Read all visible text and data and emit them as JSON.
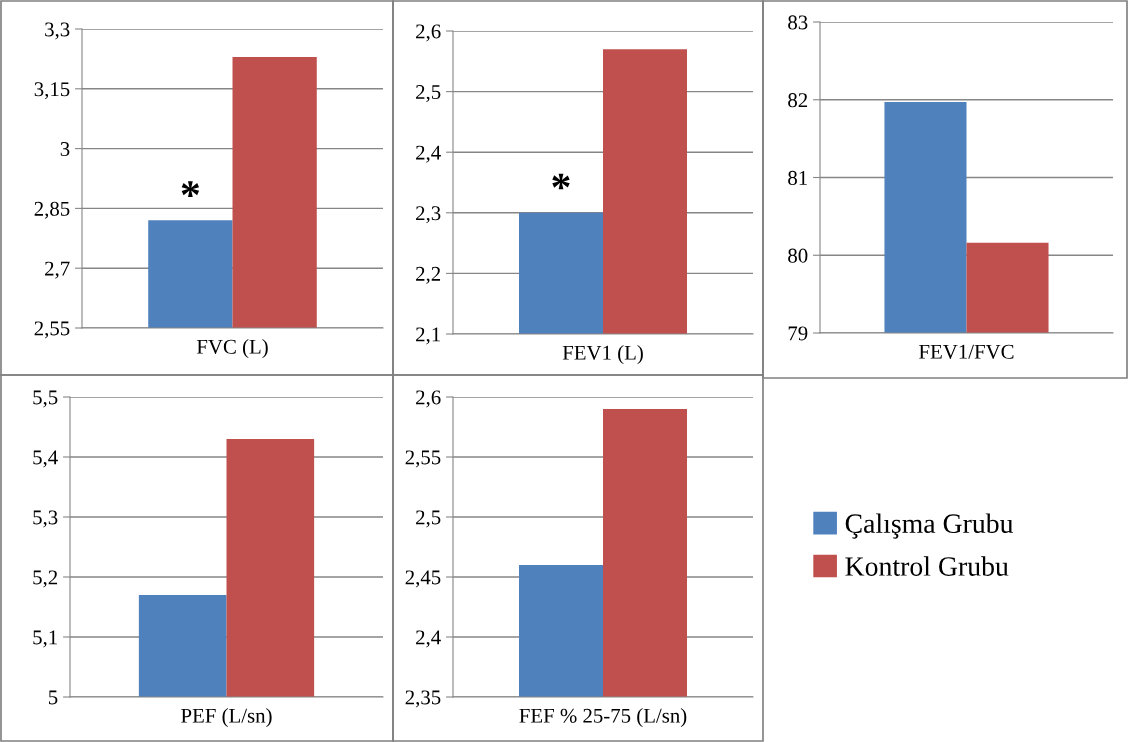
{
  "chart_data": [
    {
      "type": "bar",
      "categories": [
        "FVC (L)"
      ],
      "series": [
        {
          "color": "#4f81bd",
          "values": [
            2.82
          ]
        },
        {
          "color": "#c0504d",
          "values": [
            3.23
          ]
        }
      ],
      "ylim": [
        2.55,
        3.3
      ],
      "yticks": [
        {
          "value": 2.55,
          "label": "2,55"
        },
        {
          "value": 2.7,
          "label": "2,7"
        },
        {
          "value": 2.85,
          "label": "2,85"
        },
        3,
        {
          "value": 3.15,
          "label": "3,15"
        },
        {
          "value": 3.3,
          "label": "3,3"
        }
      ],
      "grid": "y",
      "annotations": [
        {
          "text": "*",
          "x": "FVC (L)",
          "y": 2.82
        }
      ]
    },
    {
      "type": "bar",
      "categories": [
        "FEV1 (L)"
      ],
      "series": [
        {
          "color": "#4f81bd",
          "values": [
            2.3
          ]
        },
        {
          "color": "#c0504d",
          "values": [
            2.57
          ]
        }
      ],
      "ylim": [
        2.1,
        2.6
      ],
      "yticks": [
        {
          "value": 2.1,
          "label": "2,1"
        },
        {
          "value": 2.2,
          "label": "2,2"
        },
        {
          "value": 2.3,
          "label": "2,3"
        },
        {
          "value": 2.4,
          "label": "2,4"
        },
        {
          "value": 2.5,
          "label": "2,5"
        },
        {
          "value": 2.6,
          "label": "2,6"
        }
      ],
      "grid": "y",
      "annotations": [
        {
          "text": "*",
          "x": "FEV1 (L)",
          "y": 2.3
        }
      ]
    },
    {
      "type": "bar",
      "categories": [
        "FEV1/FVC"
      ],
      "series": [
        {
          "color": "#4f81bd",
          "values": [
            81.97
          ]
        },
        {
          "color": "#c0504d",
          "values": [
            80.16
          ]
        }
      ],
      "ylim": [
        79,
        83
      ],
      "yticks": [
        79,
        80,
        81,
        82,
        83
      ],
      "grid": "y"
    },
    {
      "type": "bar",
      "categories": [
        "PEF (L/sn)"
      ],
      "series": [
        {
          "color": "#4f81bd",
          "values": [
            5.17
          ]
        },
        {
          "color": "#c0504d",
          "values": [
            5.43
          ]
        }
      ],
      "ylim": [
        5,
        5.5
      ],
      "yticks": [
        5,
        {
          "value": 5.1,
          "label": "5,1"
        },
        {
          "value": 5.2,
          "label": "5,2"
        },
        {
          "value": 5.3,
          "label": "5,3"
        },
        {
          "value": 5.4,
          "label": "5,4"
        },
        {
          "value": 5.5,
          "label": "5,5"
        }
      ],
      "grid": "y"
    },
    {
      "type": "bar",
      "categories": [
        "FEF % 25-75 (L/sn)"
      ],
      "series": [
        {
          "name": "Çalışma Grubu",
          "color": "#4f81bd",
          "values": [
            2.46
          ]
        },
        {
          "name": "Kontrol Grubu",
          "color": "#c0504d",
          "values": [
            2.59
          ]
        }
      ],
      "ylim": [
        2.35,
        2.6
      ],
      "yticks": [
        {
          "value": 2.35,
          "label": "2,35"
        },
        {
          "value": 2.4,
          "label": "2,4"
        },
        {
          "value": 2.45,
          "label": "2,45"
        },
        {
          "value": 2.5,
          "label": "2,5"
        },
        {
          "value": 2.55,
          "label": "2,55"
        },
        {
          "value": 2.6,
          "label": "2,6"
        }
      ],
      "grid": "y",
      "legend": "right"
    }
  ]
}
